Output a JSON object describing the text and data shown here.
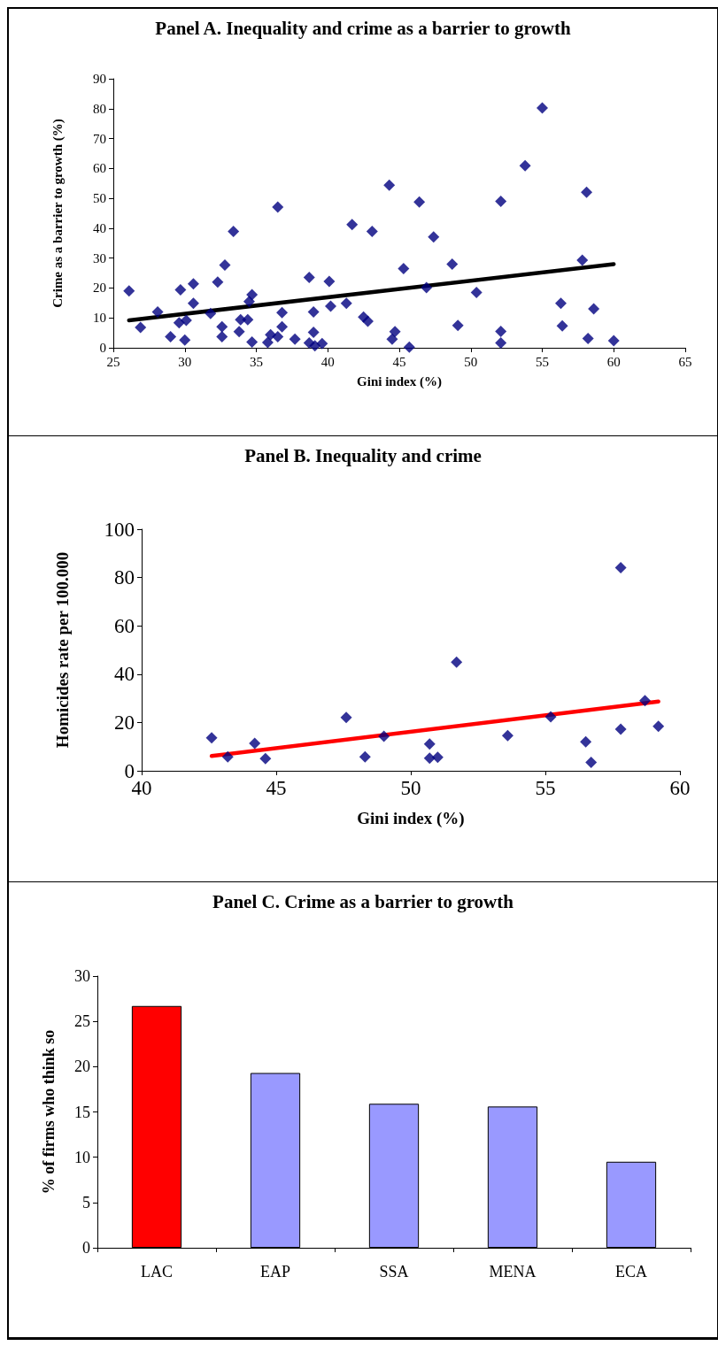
{
  "chart_data": [
    {
      "type": "scatter",
      "title": "Panel A. Inequality and crime as a barrier to growth",
      "xlabel": "Gini index (%)",
      "ylabel": "Crime as a barrier to growth (%)",
      "xlim": [
        25,
        65
      ],
      "xticks": [
        25,
        30,
        35,
        40,
        45,
        50,
        55,
        60,
        65
      ],
      "ylim": [
        0,
        90
      ],
      "yticks": [
        0,
        10,
        20,
        30,
        40,
        50,
        60,
        70,
        80,
        90
      ],
      "series": [
        {
          "type": "scatter",
          "marker": "diamond",
          "color": "#000080",
          "x": [
            26.1,
            26.9,
            28.1,
            29.0,
            29.7,
            29.6,
            30.1,
            30.0,
            30.6,
            30.6,
            31.8,
            32.3,
            32.8,
            32.6,
            32.6,
            33.4,
            33.8,
            33.9,
            34.4,
            34.5,
            34.7,
            34.7,
            35.8,
            36.0,
            36.5,
            36.5,
            36.8,
            36.8,
            37.7,
            38.7,
            38.7,
            39.0,
            39.0,
            39.1,
            39.6,
            40.1,
            40.2,
            41.3,
            41.7,
            42.5,
            42.8,
            43.1,
            44.3,
            44.5,
            44.7,
            45.7,
            45.3,
            46.4,
            46.9,
            47.4,
            48.7,
            49.1,
            50.4,
            52.1,
            52.1,
            52.1,
            53.8,
            55.0,
            56.3,
            56.4,
            57.8,
            58.1,
            58.2,
            58.6,
            60.0
          ],
          "values": [
            19.0,
            6.8,
            12.0,
            3.7,
            19.4,
            8.4,
            9.2,
            2.6,
            21.4,
            14.9,
            11.5,
            22.0,
            27.7,
            7.0,
            3.7,
            38.9,
            5.4,
            9.4,
            9.4,
            15.5,
            17.8,
            1.9,
            1.8,
            4.4,
            3.7,
            47.1,
            11.8,
            7.0,
            2.9,
            23.5,
            1.6,
            12.0,
            5.2,
            0.7,
            1.4,
            22.2,
            13.9,
            14.9,
            41.2,
            10.3,
            8.9,
            38.9,
            54.4,
            2.9,
            5.4,
            0.2,
            26.5,
            48.8,
            20.1,
            37.1,
            28.0,
            7.5,
            18.5,
            49.0,
            5.5,
            1.6,
            60.9,
            80.2,
            14.9,
            7.3,
            29.3,
            52.0,
            3.1,
            13.0,
            2.4
          ]
        },
        {
          "type": "line",
          "color": "#000000",
          "x": [
            26.1,
            60.0
          ],
          "values": [
            9.2,
            28.0
          ]
        }
      ]
    },
    {
      "type": "scatter",
      "title": "Panel B. Inequality and crime",
      "xlabel": "Gini index (%)",
      "ylabel": "Homicides rate per 100.000",
      "xlim": [
        40,
        60
      ],
      "xticks": [
        40,
        45,
        50,
        55,
        60
      ],
      "ylim": [
        0,
        100
      ],
      "yticks": [
        0,
        20,
        40,
        60,
        80,
        100
      ],
      "series": [
        {
          "type": "scatter",
          "marker": "diamond",
          "color": "#000080",
          "x": [
            42.6,
            43.2,
            44.2,
            44.6,
            47.6,
            48.3,
            49.0,
            50.7,
            50.7,
            51.0,
            51.7,
            53.6,
            55.2,
            56.5,
            56.7,
            57.8,
            57.8,
            58.7,
            59.2
          ],
          "values": [
            13.6,
            5.8,
            11.4,
            5.0,
            22.1,
            5.8,
            14.3,
            11.1,
            5.2,
            5.6,
            45.0,
            14.6,
            22.3,
            12.0,
            3.5,
            84.1,
            17.2,
            29.0,
            18.4
          ]
        },
        {
          "type": "line",
          "color": "#ff0000",
          "x": [
            42.6,
            59.2
          ],
          "values": [
            6.1,
            28.7
          ]
        }
      ]
    },
    {
      "type": "bar",
      "title": "Panel C. Crime as a barrier to growth",
      "ylabel": "% of firms who think so",
      "categories": [
        "LAC",
        "EAP",
        "SSA",
        "MENA",
        "ECA"
      ],
      "values": [
        26.7,
        19.3,
        15.9,
        15.6,
        9.5
      ],
      "colors": [
        "#ff0000",
        "#9999ff",
        "#9999ff",
        "#9999ff",
        "#9999ff"
      ],
      "ylim": [
        0,
        30
      ],
      "yticks": [
        0,
        5,
        10,
        15,
        20,
        25,
        30
      ]
    }
  ]
}
